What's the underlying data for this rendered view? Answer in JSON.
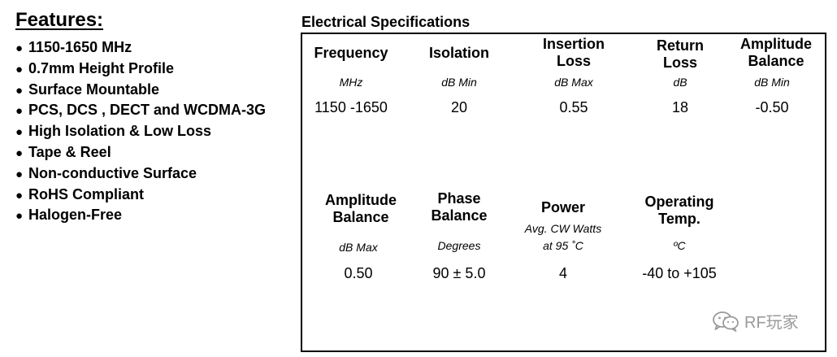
{
  "features": {
    "title": "Features:",
    "items": [
      "1150-1650 MHz",
      "0.7mm Height Profile",
      "Surface Mountable",
      "PCS, DCS , DECT and WCDMA-3G",
      "High Isolation & Low Loss",
      "Tape & Reel",
      "Non-conductive Surface",
      "RoHS Compliant",
      "Halogen-Free"
    ]
  },
  "specs": {
    "title": "Electrical Specifications",
    "row1": [
      {
        "header": [
          "Frequency"
        ],
        "unit": "MHz",
        "value": "1150 -1650"
      },
      {
        "header": [
          "Isolation"
        ],
        "unit": "dB Min",
        "value": "20"
      },
      {
        "header": [
          "Insertion",
          "Loss"
        ],
        "unit": "dB Max",
        "value": "0.55"
      },
      {
        "header": [
          "Return",
          "Loss"
        ],
        "unit": "dB",
        "value": "18"
      },
      {
        "header": [
          "Amplitude",
          "Balance"
        ],
        "unit": "dB Min",
        "value": "-0.50"
      }
    ],
    "row2": [
      {
        "header": [
          "Amplitude",
          "Balance"
        ],
        "unit": "dB Max",
        "value": "0.50"
      },
      {
        "header": [
          "Phase",
          "Balance"
        ],
        "unit": "Degrees",
        "value": "90 ± 5.0"
      },
      {
        "header": [
          "Power"
        ],
        "unit": "Avg. CW Watts",
        "unit2": "at 95 ˚C",
        "value": "4"
      },
      {
        "header": [
          "Operating",
          "Temp."
        ],
        "unit": "ºC",
        "value": "-40 to +105"
      }
    ]
  },
  "watermark": {
    "text": "RF玩家",
    "icon": "wechat-icon"
  }
}
